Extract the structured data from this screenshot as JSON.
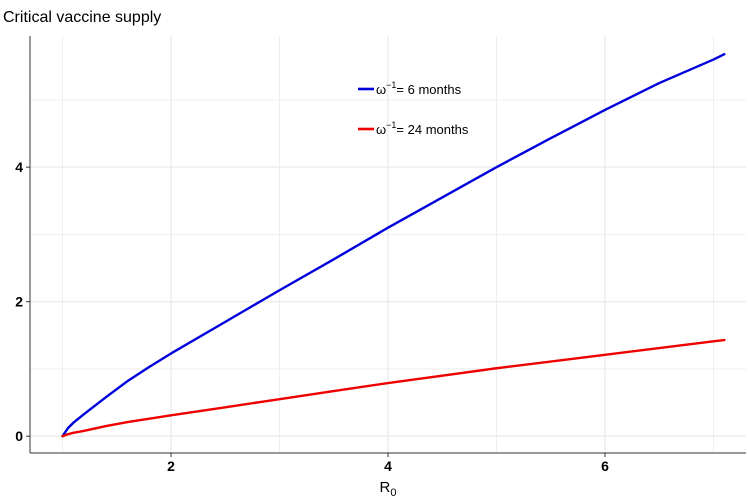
{
  "chart_data": {
    "type": "line",
    "title": "Critical vaccine supply",
    "xlabel": "R",
    "xlabel_subscript": "0",
    "ylabel": "",
    "xlim": [
      0.7,
      7.3
    ],
    "ylim": [
      -0.25,
      5.95
    ],
    "x_ticks": [
      2,
      4,
      6
    ],
    "y_ticks": [
      0,
      2,
      4
    ],
    "x_tick_labels": [
      "2",
      "4",
      "6"
    ],
    "y_tick_labels": [
      "0",
      "2",
      "4"
    ],
    "grid": true,
    "legend_position": "top-center",
    "series": [
      {
        "name_symbol": "ω",
        "name_superscript": "−1",
        "name_text": "= 6 months",
        "color": "#0000dd",
        "x": [
          1.0,
          1.05,
          1.1,
          1.2,
          1.4,
          1.6,
          1.8,
          2.0,
          2.5,
          3.0,
          3.5,
          4.0,
          4.5,
          5.0,
          5.5,
          6.0,
          6.5,
          7.0,
          7.1
        ],
        "y": [
          0.0,
          0.12,
          0.2,
          0.33,
          0.58,
          0.82,
          1.03,
          1.23,
          1.7,
          2.17,
          2.63,
          3.1,
          3.55,
          4.0,
          4.43,
          4.85,
          5.25,
          5.6,
          5.68
        ]
      },
      {
        "name_symbol": "ω",
        "name_superscript": "−1",
        "name_text": "= 24 months",
        "color": "#ee0000",
        "x": [
          1.0,
          1.05,
          1.1,
          1.2,
          1.4,
          1.6,
          1.8,
          2.0,
          2.5,
          3.0,
          3.5,
          4.0,
          4.5,
          5.0,
          5.5,
          6.0,
          6.5,
          7.0,
          7.1
        ],
        "y": [
          0.0,
          0.03,
          0.05,
          0.08,
          0.15,
          0.21,
          0.26,
          0.31,
          0.43,
          0.55,
          0.67,
          0.79,
          0.9,
          1.01,
          1.11,
          1.21,
          1.31,
          1.41,
          1.43
        ]
      }
    ]
  },
  "colors": {
    "grid": "#ebebeb",
    "axis": "#333333",
    "background": "#ffffff"
  }
}
